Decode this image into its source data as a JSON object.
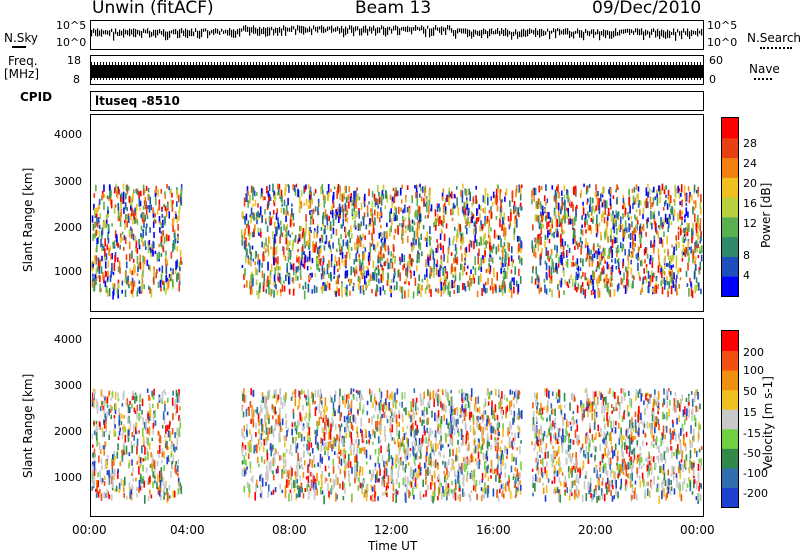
{
  "header": {
    "station": "Unwin (fitACF)",
    "beam": "Beam 13",
    "date": "09/Dec/2010"
  },
  "top_panels": {
    "nsky_label": "N.Sky",
    "nsearch_label": "N.Search",
    "nsky_ticks": [
      "10^5",
      "10^0"
    ],
    "freq_label_line1": "Freq.",
    "freq_label_line2": "[MHz]",
    "freq_ticks": [
      "18",
      "8"
    ],
    "nave_label": "Nave",
    "nave_ticks": [
      "60",
      "0"
    ],
    "cpid_label": "CPID",
    "cpid_value": "ltuseq -8510"
  },
  "chart_data": [
    {
      "type": "heatmap",
      "title": "",
      "ylabel": "Slant Range [km]",
      "xlabel": "",
      "xlim": [
        "00:00",
        "24:00"
      ],
      "ylim": [
        200,
        4500
      ],
      "yticks": [
        "4000",
        "3000",
        "2000",
        "1000"
      ],
      "colorbar": {
        "label": "Power [dB]",
        "ticks": [
          "28",
          "24",
          "20",
          "16",
          "12",
          "8",
          "4"
        ],
        "colors": [
          "#0000ff",
          "#1f4fbf",
          "#2f8a6a",
          "#58b050",
          "#b8d040",
          "#f0c020",
          "#f08010",
          "#e84010",
          "#ff0000"
        ]
      },
      "grid": false
    },
    {
      "type": "heatmap",
      "title": "",
      "ylabel": "Slant Range [km]",
      "xlabel": "Time UT",
      "xlim": [
        "00:00",
        "24:00"
      ],
      "ylim": [
        200,
        4500
      ],
      "yticks": [
        "4000",
        "3000",
        "2000",
        "1000"
      ],
      "xticks": [
        "00:00",
        "04:00",
        "08:00",
        "12:00",
        "16:00",
        "20:00",
        "00:00"
      ],
      "colorbar": {
        "label": "Velocity [m s-1]",
        "ticks": [
          "200",
          "100",
          "50",
          "15",
          "-15",
          "-50",
          "-100",
          "-200"
        ],
        "colors": [
          "#1f3fd0",
          "#2f6fb0",
          "#2f8a4a",
          "#70d040",
          "#c8c8c8",
          "#f0c020",
          "#f09010",
          "#f05010",
          "#ff0000"
        ]
      },
      "grid": false
    }
  ]
}
